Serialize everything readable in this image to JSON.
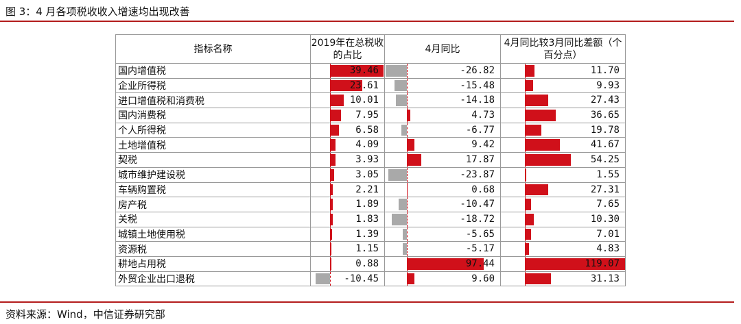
{
  "title": "图 3：4 月各项税收收入增速均出现改善",
  "source": "资料来源：Wind，中信证券研究部",
  "colors": {
    "positive": "#d0101a",
    "negative": "#a9a9a9",
    "rule": "#b31b1b"
  },
  "headers": [
    "指标名称",
    "2019年在总税收的占比",
    "4月同比",
    "4月同比较3月同比差额（个百分点）"
  ],
  "rows": [
    [
      "国内增值税",
      "39.46",
      "-26.82",
      "11.70"
    ],
    [
      "企业所得税",
      "23.61",
      "-15.48",
      "9.93"
    ],
    [
      "进口增值税和消费税",
      "10.01",
      "-14.18",
      "27.43"
    ],
    [
      "国内消费税",
      "7.95",
      "4.73",
      "36.65"
    ],
    [
      "个人所得税",
      "6.58",
      "-6.77",
      "19.78"
    ],
    [
      "土地增值税",
      "4.09",
      "9.42",
      "41.67"
    ],
    [
      "契税",
      "3.93",
      "17.87",
      "54.25"
    ],
    [
      "城市维护建设税",
      "3.05",
      "-23.87",
      "1.55"
    ],
    [
      "车辆购置税",
      "2.21",
      "0.68",
      "27.31"
    ],
    [
      "房产税",
      "1.89",
      "-10.47",
      "7.65"
    ],
    [
      "关税",
      "1.83",
      "-18.72",
      "10.30"
    ],
    [
      "城镇土地使用税",
      "1.39",
      "-5.65",
      "7.01"
    ],
    [
      "资源税",
      "1.15",
      "-5.17",
      "4.83"
    ],
    [
      "耕地占用税",
      "0.88",
      "97.44",
      "119.07"
    ],
    [
      "外贸企业出口退税",
      "-10.45",
      "9.60",
      "31.13"
    ]
  ]
}
